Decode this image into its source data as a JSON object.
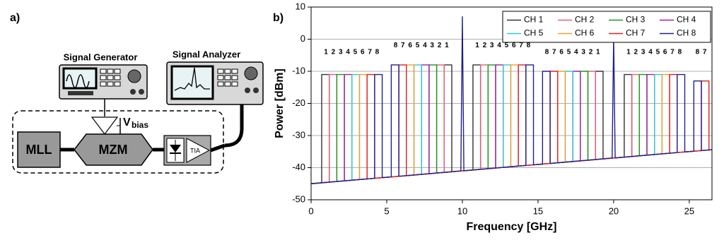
{
  "diagram": {
    "panel_label": "a)",
    "signal_generator": "Signal Generator",
    "signal_analyzer": "Signal Analyzer",
    "mll": "MLL",
    "mzm": "MZM",
    "v": "V",
    "bias": "bias",
    "tia": "TIA"
  },
  "chart_data": {
    "type": "line",
    "panel_label": "b)",
    "x_label": "Frequency [GHz]",
    "y_label": "Power [dBm]",
    "xlim": [
      0,
      26.5
    ],
    "xticks": [
      0,
      5,
      10,
      15,
      20,
      25
    ],
    "ylim": [
      -50,
      10
    ],
    "yticks": [
      -50,
      -40,
      -30,
      -20,
      -10,
      0,
      10
    ],
    "grid": true,
    "legend": "top-right",
    "annotations": [
      {
        "text": "1 2 3 4 5 6 7 8",
        "x": 2.7,
        "y": -4
      },
      {
        "text": "8 7 6 5 4 3 2 1",
        "x": 7.3,
        "y": -2
      },
      {
        "text": "1 2 3 4 5 6 7 8",
        "x": 12.7,
        "y": -2
      },
      {
        "text": "8 7 6 5 4 3 2 1",
        "x": 17.3,
        "y": -4
      },
      {
        "text": "1 2 3 4 5 6 7 8",
        "x": 22.7,
        "y": -4
      },
      {
        "text": "8 7",
        "x": 25.8,
        "y": -4
      }
    ],
    "series": [
      {
        "name": "CH 1",
        "color": "#333333",
        "x": [
          0,
          0.7,
          0.7,
          1.2,
          1.2,
          8.8,
          8.8,
          9.3,
          9.3,
          10.7,
          10.7,
          11.2,
          11.2,
          18.8,
          18.8,
          19.3,
          19.3,
          20.7,
          20.7,
          21.2,
          21.2,
          26.5
        ],
        "values": [
          -45,
          -44.7,
          -11,
          -11,
          -44.5,
          -41.5,
          -8,
          -8,
          -41.3,
          -40.7,
          -8,
          -8,
          -40.5,
          -37.5,
          -10,
          -10,
          -37.3,
          -36.7,
          -11,
          -11,
          -36.5,
          -34.4
        ]
      },
      {
        "name": "CH 2",
        "color": "#e0607a",
        "x": [
          0,
          1.2,
          1.2,
          1.7,
          1.7,
          8.3,
          8.3,
          8.8,
          8.8,
          11.2,
          11.2,
          11.7,
          11.7,
          18.3,
          18.3,
          18.8,
          18.8,
          21.2,
          21.2,
          21.7,
          21.7,
          26.5
        ],
        "values": [
          -45,
          -44.5,
          -11,
          -11,
          -44.3,
          -41.7,
          -8,
          -8,
          -41.5,
          -40.5,
          -8,
          -8,
          -40.3,
          -37.7,
          -10,
          -10,
          -37.5,
          -36.5,
          -11,
          -11,
          -36.3,
          -34.4
        ]
      },
      {
        "name": "CH 3",
        "color": "#1a9a1a",
        "x": [
          0,
          1.7,
          1.7,
          2.2,
          2.2,
          7.8,
          7.8,
          8.3,
          8.3,
          11.7,
          11.7,
          12.2,
          12.2,
          17.8,
          17.8,
          18.3,
          18.3,
          21.7,
          21.7,
          22.2,
          22.2,
          26.5
        ],
        "values": [
          -45,
          -44.3,
          -11,
          -11,
          -44.1,
          -41.9,
          -8,
          -8,
          -41.7,
          -40.3,
          -8,
          -8,
          -40.1,
          -37.9,
          -10,
          -10,
          -37.7,
          -36.3,
          -11,
          -11,
          -36.1,
          -34.4
        ]
      },
      {
        "name": "CH 4",
        "color": "#a020a0",
        "x": [
          0,
          2.2,
          2.2,
          2.7,
          2.7,
          7.3,
          7.3,
          7.8,
          7.8,
          12.2,
          12.2,
          12.7,
          12.7,
          17.3,
          17.3,
          17.8,
          17.8,
          22.2,
          22.2,
          22.7,
          22.7,
          26.5
        ],
        "values": [
          -45,
          -44.1,
          -11,
          -11,
          -43.9,
          -42.1,
          -8,
          -8,
          -41.9,
          -40.1,
          -8,
          -8,
          -39.9,
          -38.1,
          -10,
          -10,
          -37.9,
          -36.1,
          -11,
          -11,
          -35.9,
          -34.4
        ]
      },
      {
        "name": "CH 5",
        "color": "#30c8d0",
        "x": [
          0,
          2.7,
          2.7,
          3.2,
          3.2,
          6.8,
          6.8,
          7.3,
          7.3,
          12.7,
          12.7,
          13.2,
          13.2,
          16.8,
          16.8,
          17.3,
          17.3,
          22.7,
          22.7,
          23.2,
          23.2,
          26.5
        ],
        "values": [
          -45,
          -43.9,
          -11,
          -11,
          -43.7,
          -42.3,
          -8,
          -8,
          -42.1,
          -39.9,
          -8,
          -8,
          -39.7,
          -38.3,
          -10,
          -10,
          -38.1,
          -35.9,
          -11,
          -11,
          -35.7,
          -34.4
        ]
      },
      {
        "name": "CH 6",
        "color": "#f0a030",
        "x": [
          0,
          3.2,
          3.2,
          3.7,
          3.7,
          6.3,
          6.3,
          6.8,
          6.8,
          13.2,
          13.2,
          13.7,
          13.7,
          16.3,
          16.3,
          16.8,
          16.8,
          23.2,
          23.2,
          23.7,
          23.7,
          26.5
        ],
        "values": [
          -45,
          -43.7,
          -11,
          -11,
          -43.5,
          -42.5,
          -8,
          -8,
          -42.3,
          -39.7,
          -8,
          -8,
          -39.5,
          -38.5,
          -10,
          -10,
          -38.3,
          -35.7,
          -11,
          -11,
          -35.5,
          -34.4
        ]
      },
      {
        "name": "CH 7",
        "color": "#e02020",
        "x": [
          0,
          3.7,
          3.7,
          4.2,
          4.2,
          5.8,
          5.8,
          6.3,
          6.3,
          13.7,
          13.7,
          14.2,
          14.2,
          15.8,
          15.8,
          16.3,
          16.3,
          23.7,
          23.7,
          24.2,
          24.2,
          25.8,
          25.8,
          26.3,
          26.3,
          26.5
        ],
        "values": [
          -45,
          -43.5,
          -11,
          -11,
          -43.3,
          -42.7,
          -8,
          -8,
          -42.5,
          -39.5,
          -8,
          -8,
          -39.3,
          -38.7,
          -10,
          -10,
          -38.5,
          -35.5,
          -11,
          -11,
          -35.3,
          -34.7,
          -13,
          -13,
          -34.5,
          -34.4
        ]
      },
      {
        "name": "CH 8",
        "color": "#202090",
        "x": [
          0,
          4.2,
          4.2,
          4.7,
          4.7,
          5.3,
          5.3,
          5.8,
          5.8,
          9.9,
          10,
          10.1,
          14.2,
          14.2,
          14.7,
          14.7,
          15.3,
          15.3,
          15.8,
          15.8,
          19.9,
          20,
          20.1,
          24.2,
          24.2,
          24.7,
          24.7,
          25.3,
          25.3,
          25.8,
          25.8,
          26.5
        ],
        "values": [
          -45,
          -43.3,
          -11,
          -11,
          -43.1,
          -42.9,
          -8,
          -8,
          -42.7,
          -41,
          7,
          -41,
          -39.3,
          -8,
          -8,
          -39.1,
          -38.9,
          -10,
          -10,
          -38.7,
          -37,
          1,
          -37,
          -35.3,
          -11,
          -11,
          -35.1,
          -34.9,
          -13,
          -13,
          -34.7,
          -34.4
        ]
      }
    ]
  }
}
